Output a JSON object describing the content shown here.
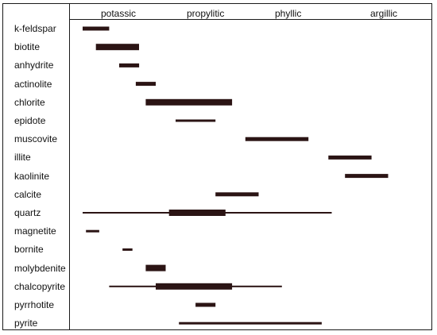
{
  "colors": {
    "bar": "#2b1414",
    "frame": "#1a1a1a",
    "text": "#111111"
  },
  "zones": [
    {
      "name": "potassic"
    },
    {
      "name": "propylitic"
    },
    {
      "name": "phyllic"
    },
    {
      "name": "argillic"
    }
  ],
  "minerals": [
    {
      "name": "k-feldspar",
      "segments": [
        {
          "from": 0.0,
          "to": 0.08,
          "intensity": "medium"
        }
      ]
    },
    {
      "name": "biotite",
      "segments": [
        {
          "from": 0.04,
          "to": 0.17,
          "intensity": "strong"
        }
      ]
    },
    {
      "name": "anhydrite",
      "segments": [
        {
          "from": 0.11,
          "to": 0.17,
          "intensity": "medium"
        }
      ]
    },
    {
      "name": "actinolite",
      "segments": [
        {
          "from": 0.16,
          "to": 0.22,
          "intensity": "medium"
        }
      ]
    },
    {
      "name": "chlorite",
      "segments": [
        {
          "from": 0.19,
          "to": 0.45,
          "intensity": "strong"
        }
      ]
    },
    {
      "name": "epidote",
      "segments": [
        {
          "from": 0.28,
          "to": 0.4,
          "intensity": "weak"
        }
      ]
    },
    {
      "name": "muscovite",
      "segments": [
        {
          "from": 0.49,
          "to": 0.68,
          "intensity": "medium"
        }
      ]
    },
    {
      "name": "illite",
      "segments": [
        {
          "from": 0.74,
          "to": 0.87,
          "intensity": "medium"
        }
      ]
    },
    {
      "name": "kaolinite",
      "segments": [
        {
          "from": 0.79,
          "to": 0.92,
          "intensity": "medium"
        }
      ]
    },
    {
      "name": "calcite",
      "segments": [
        {
          "from": 0.4,
          "to": 0.53,
          "intensity": "medium"
        }
      ]
    },
    {
      "name": "quartz",
      "segments": [
        {
          "from": 0.0,
          "to": 0.75,
          "intensity": "thin"
        },
        {
          "from": 0.26,
          "to": 0.43,
          "intensity": "strong"
        }
      ]
    },
    {
      "name": "magnetite",
      "segments": [
        {
          "from": 0.01,
          "to": 0.05,
          "intensity": "weak"
        }
      ]
    },
    {
      "name": "bornite",
      "segments": [
        {
          "from": 0.12,
          "to": 0.15,
          "intensity": "weak"
        }
      ]
    },
    {
      "name": "molybdenite",
      "segments": [
        {
          "from": 0.19,
          "to": 0.25,
          "intensity": "strong"
        }
      ]
    },
    {
      "name": "chalcopyrite",
      "segments": [
        {
          "from": 0.08,
          "to": 0.6,
          "intensity": "thin"
        },
        {
          "from": 0.22,
          "to": 0.45,
          "intensity": "strong"
        }
      ]
    },
    {
      "name": "pyrrhotite",
      "segments": [
        {
          "from": 0.34,
          "to": 0.4,
          "intensity": "medium"
        }
      ]
    },
    {
      "name": "pyrite",
      "segments": [
        {
          "from": 0.29,
          "to": 0.72,
          "intensity": "weak"
        }
      ]
    }
  ]
}
